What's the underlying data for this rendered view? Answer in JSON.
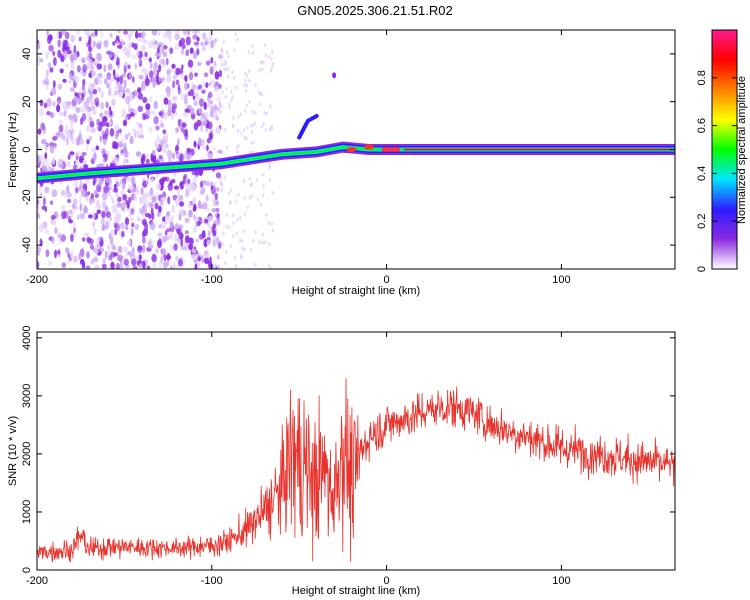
{
  "title": "GN05.2025.306.21.51.R02",
  "colors": {
    "snr_line": "#e8322c",
    "colorbar": [
      "#ffffff",
      "#8a2be2",
      "#2c1cff",
      "#00e5ff",
      "#00ff00",
      "#ffff00",
      "#ff8000",
      "#ff0000",
      "#ff1a8c"
    ]
  },
  "chart_data": [
    {
      "id": "spectrogram",
      "type": "heatmap",
      "xlabel": "Height of straight line (km)",
      "ylabel": "Frequency (Hz)",
      "xlim": [
        -200,
        165
      ],
      "ylim": [
        -50,
        50
      ],
      "xticks": [
        -200,
        -100,
        0,
        100
      ],
      "yticks": [
        -40,
        -20,
        0,
        20,
        40
      ],
      "colorbar": {
        "label": "Normalized spectral amplitude",
        "ticks": [
          0,
          0.2,
          0.4,
          0.6,
          0.8
        ],
        "range": [
          0,
          1
        ]
      },
      "features": {
        "carrier_track": [
          [
            -200,
            -12
          ],
          [
            -170,
            -10
          ],
          [
            -95,
            -6
          ],
          [
            -60,
            -2
          ],
          [
            -40,
            -1
          ],
          [
            -25,
            1
          ],
          [
            -10,
            0
          ],
          [
            0,
            0
          ],
          [
            5,
            0
          ],
          [
            10,
            0
          ],
          [
            165,
            0
          ]
        ],
        "branch_track": [
          [
            -50,
            5
          ],
          [
            -45,
            12
          ],
          [
            -40,
            14
          ]
        ],
        "spot": [
          -30,
          31
        ],
        "noise_region": [
          -200,
          -95
        ]
      }
    },
    {
      "id": "snr",
      "type": "line",
      "xlabel": "Height of straight line (km)",
      "ylabel": "SNR (10 * v/v)",
      "xlim": [
        -200,
        165
      ],
      "ylim": [
        0,
        4100
      ],
      "xticks": [
        -200,
        -100,
        0,
        100
      ],
      "yticks": [
        0,
        1000,
        2000,
        3000,
        4000
      ],
      "envelope": {
        "x": [
          -200,
          -180,
          -175,
          -170,
          -160,
          -120,
          -100,
          -90,
          -80,
          -70,
          -60,
          -55,
          -48,
          -40,
          -35,
          -30,
          -25,
          -20,
          -15,
          -10,
          0,
          10,
          20,
          30,
          40,
          50,
          60,
          80,
          100,
          120,
          140,
          165
        ],
        "mean": [
          300,
          350,
          600,
          350,
          400,
          380,
          420,
          500,
          700,
          1000,
          1400,
          2000,
          1800,
          1500,
          1700,
          1300,
          2200,
          1500,
          2000,
          2300,
          2500,
          2600,
          2700,
          2800,
          2800,
          2700,
          2500,
          2300,
          2100,
          2000,
          1900,
          1800
        ],
        "spread": [
          200,
          250,
          300,
          250,
          250,
          200,
          250,
          300,
          400,
          600,
          1000,
          1600,
          1800,
          1500,
          1500,
          1300,
          1800,
          1500,
          600,
          500,
          450,
          450,
          450,
          450,
          450,
          450,
          450,
          450,
          450,
          450,
          450,
          450
        ]
      }
    }
  ]
}
